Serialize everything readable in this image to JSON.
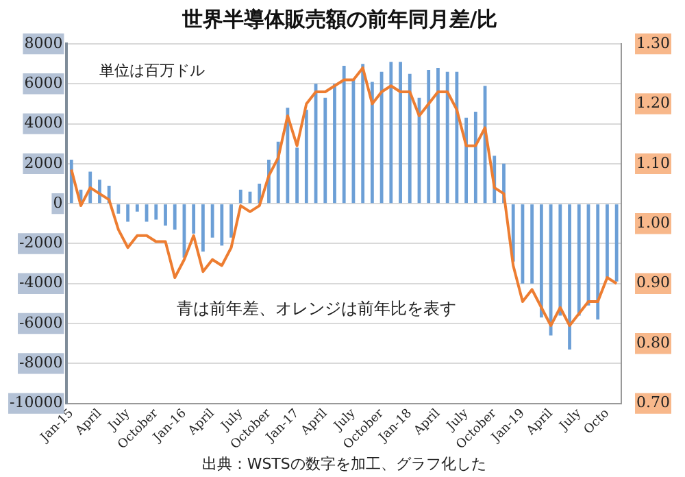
{
  "chart_data": {
    "type": "bar",
    "title": "世界半導体販売額の前年同月差/比",
    "annotations": [
      "単位は百万ドル",
      "青は前年差、オレンジは前年比を表す",
      "出典：WSTSの数字を加工、グラフ化した"
    ],
    "categories": [
      "Jan-15",
      null,
      null,
      "April",
      null,
      null,
      "July",
      null,
      null,
      "October",
      null,
      null,
      "Jan-16",
      null,
      null,
      "April",
      null,
      null,
      "July",
      null,
      null,
      "October",
      null,
      null,
      "Jan-17",
      null,
      null,
      "April",
      null,
      null,
      "July",
      null,
      null,
      "October",
      null,
      null,
      "Jan-18",
      null,
      null,
      "April",
      null,
      null,
      "July",
      null,
      null,
      "October",
      null,
      null,
      "Jan-19",
      null,
      null,
      "April",
      null,
      null,
      "July",
      null,
      null,
      "Octo",
      null
    ],
    "series": [
      {
        "color": "#6c9fd6",
        "values": [
          2200,
          700,
          1600,
          1200,
          900,
          -500,
          -900,
          -400,
          -900,
          -800,
          -1100,
          -1300,
          -2700,
          -1500,
          -2400,
          -1700,
          -2100,
          -1700,
          700,
          600,
          1000,
          2200,
          3100,
          4800,
          2800,
          4700,
          6000,
          5300,
          6000,
          6900,
          6200,
          7000,
          6100,
          6600,
          7100,
          7100,
          6500,
          5300,
          6700,
          6800,
          6600,
          6600,
          4300,
          4600,
          5900,
          2400,
          2000,
          -2900,
          -4000,
          -4000,
          -5700,
          -6600,
          -5600,
          -7300,
          -5600,
          -5100,
          -5800,
          -3700,
          -3900
        ]
      },
      {
        "type": "line",
        "axis": "y2",
        "color": "#ed7d31",
        "values": [
          1.09,
          1.03,
          1.06,
          1.05,
          1.04,
          0.99,
          0.96,
          0.98,
          0.98,
          0.97,
          0.97,
          0.91,
          0.94,
          0.98,
          0.92,
          0.94,
          0.93,
          0.96,
          1.03,
          1.02,
          1.03,
          1.08,
          1.11,
          1.18,
          1.13,
          1.2,
          1.22,
          1.22,
          1.23,
          1.24,
          1.24,
          1.26,
          1.2,
          1.22,
          1.23,
          1.22,
          1.22,
          1.18,
          1.2,
          1.22,
          1.22,
          1.19,
          1.13,
          1.13,
          1.16,
          1.06,
          1.05,
          0.93,
          0.87,
          0.89,
          0.86,
          0.83,
          0.86,
          0.83,
          0.85,
          0.87,
          0.87,
          0.91,
          0.9
        ]
      }
    ],
    "ylim": [
      -10000,
      8000
    ],
    "yticks": [
      -10000,
      -8000,
      -6000,
      -4000,
      -2000,
      0,
      2000,
      4000,
      6000,
      8000
    ],
    "y2lim": [
      0.7,
      1.3
    ],
    "y2ticks": [
      {
        "value": 0.7,
        "label": "0.70"
      },
      {
        "value": 0.8,
        "label": "0.80"
      },
      {
        "value": 0.9,
        "label": "0.90"
      },
      {
        "value": 1.0,
        "label": "1.00"
      },
      {
        "value": 1.1,
        "label": "1.10"
      },
      {
        "value": 1.2,
        "label": "1.20"
      },
      {
        "value": 1.3,
        "label": "1.30"
      }
    ],
    "grid": "y",
    "marker": "none"
  }
}
